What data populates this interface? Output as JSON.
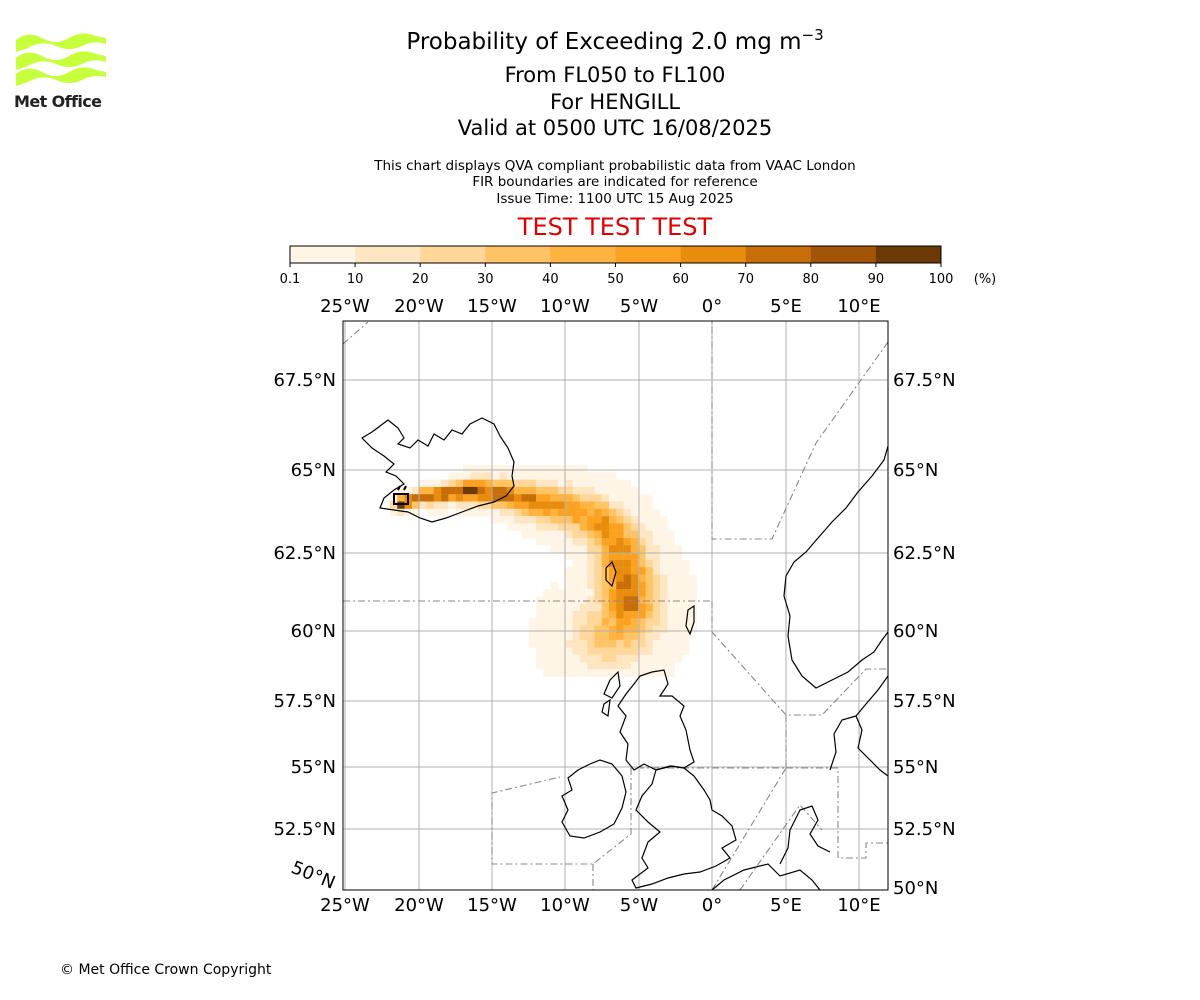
{
  "header": {
    "logo_text": "Met Office",
    "title_prefix": "Probability of Exceeding 2.0 mg m",
    "title_exponent": "−3",
    "levels": "From FL050 to FL100",
    "location": "For HENGILL",
    "valid": "Valid at 0500 UTC 16/08/2025"
  },
  "notes": {
    "line1": "This chart displays QVA compliant probabilistic data from VAAC London",
    "line2": "FIR boundaries are indicated for reference",
    "issue": "Issue Time: 1100 UTC 15 Aug 2025"
  },
  "banner": "TEST TEST TEST",
  "footer": {
    "copyright": "© Met Office Crown Copyright"
  },
  "colorbar": {
    "unit": "(%)",
    "ticks": [
      "0.1",
      "10",
      "20",
      "30",
      "40",
      "50",
      "60",
      "70",
      "80",
      "90",
      "100"
    ],
    "colors": [
      "#fff5e6",
      "#ffe6c2",
      "#ffd79a",
      "#ffc466",
      "#ffb340",
      "#fba222",
      "#e88c0d",
      "#c86e08",
      "#a45406",
      "#6b3a08"
    ]
  },
  "chart_data": {
    "type": "heatmap",
    "projection": "polar-stereographic",
    "extent": {
      "lon": [
        -25,
        12
      ],
      "lat": [
        50,
        69
      ]
    },
    "lon_ticks": [
      {
        "value": -25,
        "label": "25°W"
      },
      {
        "value": -20,
        "label": "20°W"
      },
      {
        "value": -15,
        "label": "15°W"
      },
      {
        "value": -10,
        "label": "10°W"
      },
      {
        "value": -5,
        "label": "5°W"
      },
      {
        "value": 0,
        "label": "0°"
      },
      {
        "value": 5,
        "label": "5°E"
      },
      {
        "value": 10,
        "label": "10°E"
      }
    ],
    "lat_ticks": [
      {
        "value": 67.5,
        "label": "67.5°N"
      },
      {
        "value": 65,
        "label": "65°N"
      },
      {
        "value": 62.5,
        "label": "62.5°N"
      },
      {
        "value": 60,
        "label": "60°N"
      },
      {
        "value": 57.5,
        "label": "57.5°N"
      },
      {
        "value": 55,
        "label": "55°N"
      },
      {
        "value": 52.5,
        "label": "52.5°N"
      },
      {
        "value": 50,
        "label": "50°N"
      }
    ],
    "corner_label": "50°N",
    "grid": true,
    "source": {
      "name": "HENGILL",
      "lon": -21.3,
      "lat": 64.1
    },
    "probability_field": [
      {
        "lon": -21.5,
        "lat": 64.1,
        "p": 95
      },
      {
        "lon": -20.0,
        "lat": 64.3,
        "p": 80
      },
      {
        "lon": -18.0,
        "lat": 64.4,
        "p": 85
      },
      {
        "lon": -16.5,
        "lat": 64.5,
        "p": 90
      },
      {
        "lon": -15.0,
        "lat": 64.4,
        "p": 75
      },
      {
        "lon": -13.5,
        "lat": 64.3,
        "p": 70
      },
      {
        "lon": -12.0,
        "lat": 64.1,
        "p": 65
      },
      {
        "lon": -10.5,
        "lat": 64.0,
        "p": 60
      },
      {
        "lon": -9.0,
        "lat": 63.8,
        "p": 55
      },
      {
        "lon": -7.5,
        "lat": 63.4,
        "p": 60
      },
      {
        "lon": -6.5,
        "lat": 62.8,
        "p": 65
      },
      {
        "lon": -6.3,
        "lat": 62.2,
        "p": 70
      },
      {
        "lon": -6.0,
        "lat": 61.5,
        "p": 70
      },
      {
        "lon": -5.8,
        "lat": 60.9,
        "p": 65
      },
      {
        "lon": -6.5,
        "lat": 60.3,
        "p": 50
      },
      {
        "lon": -7.5,
        "lat": 60.0,
        "p": 35
      },
      {
        "lon": -5.0,
        "lat": 59.5,
        "p": 15
      },
      {
        "lon": -8.0,
        "lat": 62.0,
        "p": 30
      },
      {
        "lon": -4.0,
        "lat": 61.5,
        "p": 25
      },
      {
        "lon": -11.0,
        "lat": 64.6,
        "p": 15
      },
      {
        "lon": -17.0,
        "lat": 64.8,
        "p": 35
      }
    ]
  }
}
